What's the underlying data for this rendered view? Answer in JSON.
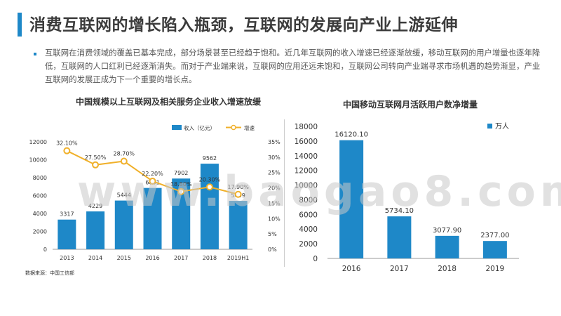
{
  "page": {
    "title": "消费互联网的增长陷入瓶颈，互联网的发展向产业上游延伸",
    "intro": "互联网在消费领域的覆盖已基本完成，部分场景甚至已经趋于饱和。近几年互联网的收入增速已经逐渐放缓，移动互联网的用户增量也逐年降低，互联网的人口红利已经逐渐消失。而对于产业端来说，互联网的应用还远未饱和，互联网公司转向产业端寻求市场机遇的趋势渐显，产业互联网的发展正成为下一个重要的增长点。",
    "watermark": "www.baogao8.com",
    "source": "数据来源：中国工信部"
  },
  "chart_data": [
    {
      "type": "bar",
      "title": "中国规模以上互联网及相关服务企业收入增速放缓",
      "categories": [
        "2013",
        "2014",
        "2015",
        "2016",
        "2017",
        "2018",
        "2019H1"
      ],
      "series": [
        {
          "name": "收入（亿元）",
          "kind": "bar",
          "values": [
            3317,
            4229,
            5444,
            6851,
            7902,
            9562,
            5409
          ],
          "value_labels": [
            "3317",
            "4229",
            "5444",
            "6851",
            "7902",
            "9562",
            "5409"
          ],
          "color": "#1e88c8"
        },
        {
          "name": "增速",
          "kind": "line",
          "axis": "right",
          "values": [
            32.1,
            27.5,
            28.7,
            22.2,
            18.8,
            20.3,
            17.9
          ],
          "value_labels": [
            "32.10%",
            "27.50%",
            "28.70%",
            "22.20%",
            "18.80%",
            "20.30%",
            "17.90%"
          ],
          "color": "#f0b02a"
        }
      ],
      "ylim": [
        0,
        12000
      ],
      "yticks": [
        "0",
        "2000",
        "4000",
        "6000",
        "8000",
        "10000",
        "12000"
      ],
      "y2lim": [
        0,
        35
      ],
      "y2ticks": [
        "0%",
        "5%",
        "10%",
        "15%",
        "20%",
        "25%",
        "30%",
        "35%"
      ],
      "legend": "top-right"
    },
    {
      "type": "bar",
      "title": "中国移动互联网月活跃用户数净增量",
      "categories": [
        "2016",
        "2017",
        "2018",
        "2019"
      ],
      "series": [
        {
          "name": "万人",
          "values": [
            16120.1,
            5734.1,
            3077.9,
            2377.0
          ],
          "value_labels": [
            "16120.10",
            "5734.10",
            "3077.90",
            "2377.00"
          ],
          "color": "#1e88c8"
        }
      ],
      "ylim": [
        0,
        18000
      ],
      "yticks": [
        "0",
        "2000",
        "4000",
        "6000",
        "8000",
        "10000",
        "12000",
        "14000",
        "16000",
        "18000"
      ],
      "legend": "top-right"
    }
  ]
}
